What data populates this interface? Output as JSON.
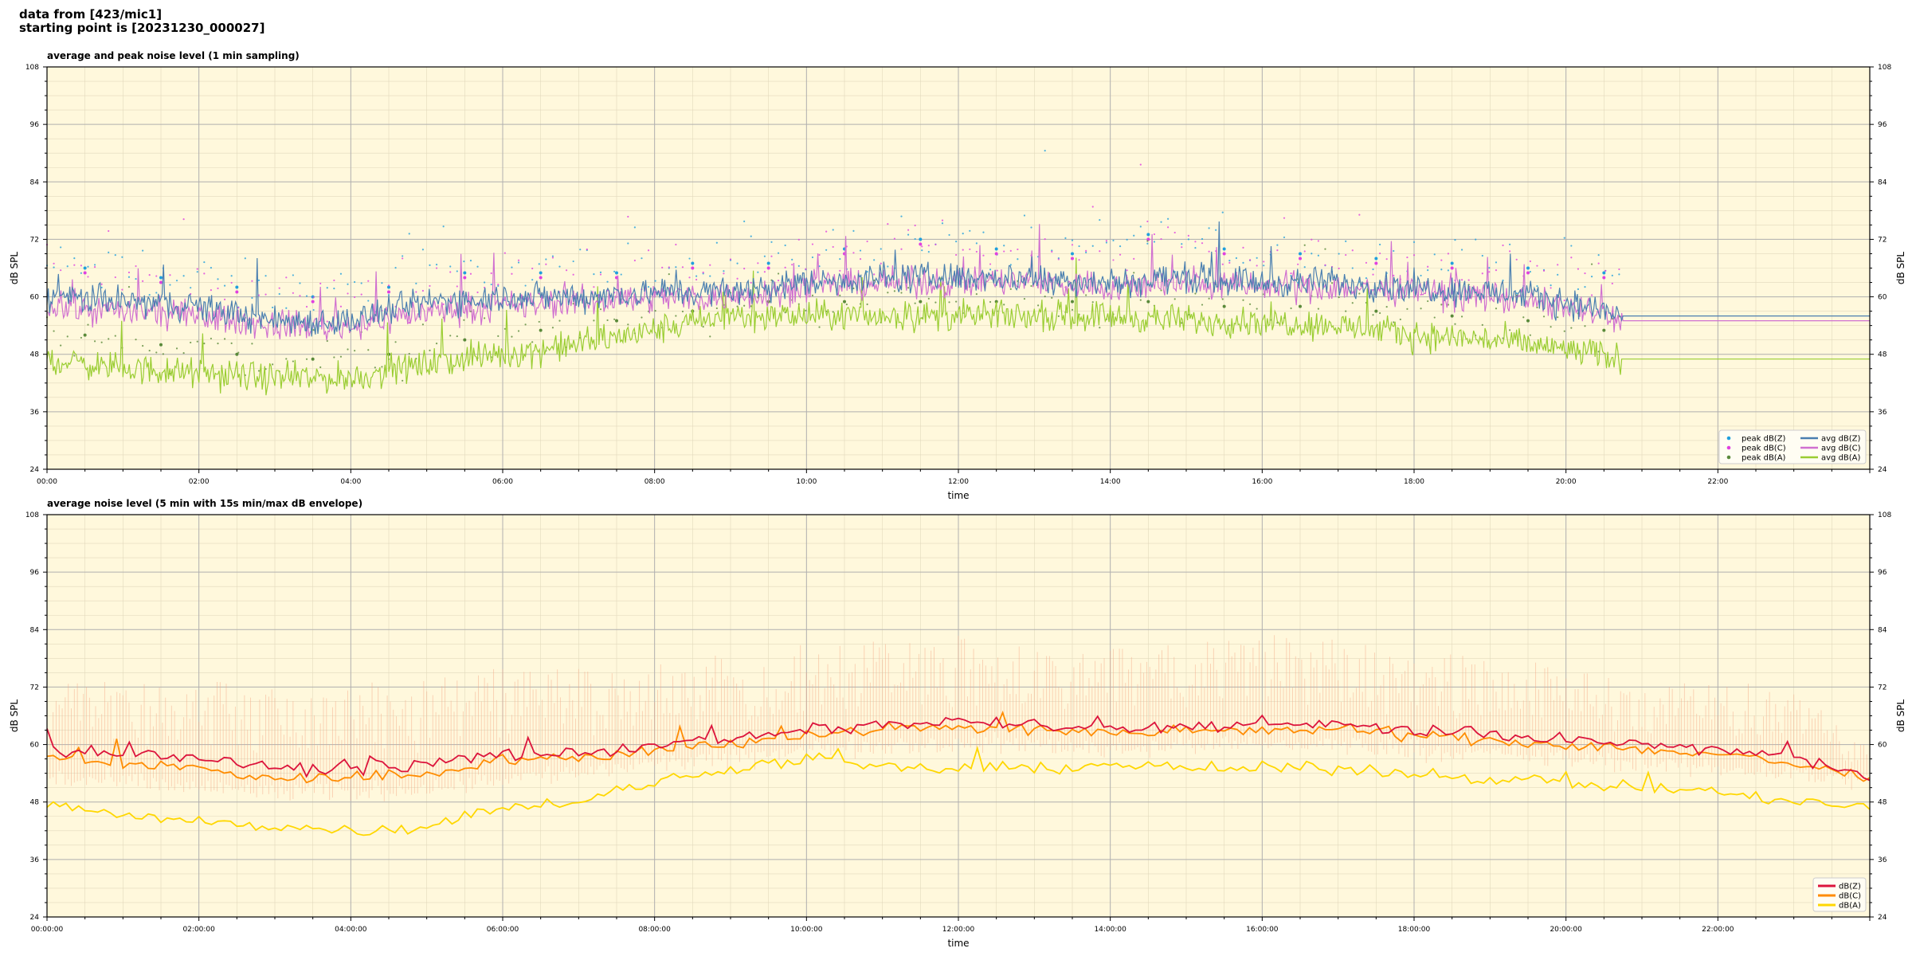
{
  "header": {
    "line1": "data from [423/mic1]",
    "line2": "starting point is [20231230_000027]"
  },
  "colors": {
    "plot_bg": "#fff8dc",
    "major_grid": "#b0b0b0",
    "minor_grid": "#e2d9bd",
    "peak_z": "#1f9fdd",
    "peak_c": "#e040e0",
    "peak_a": "#5a8a3a",
    "avg_z": "#4a7fb0",
    "avg_c": "#d070d0",
    "avg_a": "#9acd32",
    "env": "#f5a583",
    "db_z": "#dc143c",
    "db_c": "#ff8c00",
    "db_a": "#ffd700"
  },
  "chart_data": [
    {
      "type": "line",
      "title": "average and peak noise level (1 min sampling)",
      "xlabel": "time",
      "ylabel": "dB SPL",
      "xlim": [
        "00:00",
        "24:00"
      ],
      "ylim": [
        24,
        108
      ],
      "grid": true,
      "legend_position": "bottom-right",
      "x_tick_labels": [
        "00:00",
        "02:00",
        "04:00",
        "06:00",
        "08:00",
        "10:00",
        "12:00",
        "14:00",
        "16:00",
        "18:00",
        "20:00",
        "22:00"
      ],
      "y_tick_labels": [
        "24",
        "36",
        "48",
        "60",
        "72",
        "84",
        "96",
        "108"
      ],
      "legend": [
        "peak dB(Z)",
        "peak dB(C)",
        "peak dB(A)",
        "avg dB(Z)",
        "avg dB(C)",
        "avg dB(A)"
      ],
      "data_end_time": "20:45",
      "series": [
        {
          "name": "avg dB(Z)",
          "x": [
            "00:00",
            "01:00",
            "02:00",
            "03:00",
            "04:00",
            "05:00",
            "06:00",
            "07:00",
            "08:00",
            "09:00",
            "10:00",
            "11:00",
            "12:00",
            "13:00",
            "14:00",
            "15:00",
            "16:00",
            "17:00",
            "18:00",
            "19:00",
            "20:00",
            "20:45",
            "24:00"
          ],
          "values": [
            60,
            59,
            58,
            55,
            55,
            59,
            60,
            60,
            61,
            61,
            63,
            64,
            64,
            64,
            63,
            64,
            63,
            63,
            62,
            61,
            59,
            56,
            56
          ]
        },
        {
          "name": "avg dB(C)",
          "x": [
            "00:00",
            "01:00",
            "02:00",
            "03:00",
            "04:00",
            "05:00",
            "06:00",
            "07:00",
            "08:00",
            "09:00",
            "10:00",
            "11:00",
            "12:00",
            "13:00",
            "14:00",
            "15:00",
            "16:00",
            "17:00",
            "18:00",
            "19:00",
            "20:00",
            "20:45",
            "24:00"
          ],
          "values": [
            58,
            57,
            56,
            54,
            54,
            57,
            58,
            59,
            60,
            60,
            62,
            63,
            63,
            63,
            62,
            63,
            62,
            62,
            61,
            60,
            58,
            55,
            55
          ]
        },
        {
          "name": "avg dB(A)",
          "x": [
            "00:00",
            "01:00",
            "02:00",
            "03:00",
            "04:00",
            "05:00",
            "06:00",
            "07:00",
            "08:00",
            "09:00",
            "10:00",
            "11:00",
            "12:00",
            "13:00",
            "14:00",
            "15:00",
            "16:00",
            "17:00",
            "18:00",
            "19:00",
            "20:00",
            "20:45",
            "24:00"
          ],
          "values": [
            47,
            45,
            44,
            43,
            43,
            46,
            48,
            50,
            53,
            56,
            56,
            56,
            56,
            56,
            56,
            55,
            55,
            54,
            52,
            51,
            49,
            47,
            47
          ]
        }
      ],
      "peaks": [
        {
          "name": "peak dB(Z)",
          "x": [
            "00:30",
            "01:30",
            "02:30",
            "03:30",
            "04:30",
            "05:30",
            "06:30",
            "07:30",
            "08:30",
            "09:30",
            "10:30",
            "11:30",
            "12:30",
            "13:30",
            "14:30",
            "15:30",
            "16:30",
            "17:30",
            "18:30",
            "19:30",
            "20:30"
          ],
          "values": [
            66,
            64,
            62,
            60,
            62,
            65,
            65,
            65,
            67,
            67,
            70,
            72,
            70,
            69,
            73,
            70,
            69,
            68,
            67,
            66,
            65
          ]
        },
        {
          "name": "peak dB(C)",
          "x": [
            "00:30",
            "01:30",
            "02:30",
            "03:30",
            "04:30",
            "05:30",
            "06:30",
            "07:30",
            "08:30",
            "09:30",
            "10:30",
            "11:30",
            "12:30",
            "13:30",
            "14:30",
            "15:30",
            "16:30",
            "17:30",
            "18:30",
            "19:30",
            "20:30"
          ],
          "values": [
            65,
            63,
            61,
            59,
            61,
            64,
            64,
            64,
            66,
            66,
            69,
            71,
            69,
            68,
            72,
            69,
            68,
            67,
            66,
            65,
            64
          ]
        },
        {
          "name": "peak dB(A)",
          "x": [
            "00:30",
            "01:30",
            "02:30",
            "03:30",
            "04:30",
            "05:30",
            "06:30",
            "07:30",
            "08:30",
            "09:30",
            "10:30",
            "11:30",
            "12:30",
            "13:30",
            "14:30",
            "15:30",
            "16:30",
            "17:30",
            "18:30",
            "19:30",
            "20:30"
          ],
          "values": [
            52,
            50,
            48,
            47,
            48,
            51,
            53,
            55,
            57,
            59,
            59,
            59,
            59,
            59,
            59,
            58,
            58,
            57,
            56,
            55,
            53
          ]
        }
      ]
    },
    {
      "type": "line",
      "title": "average noise level (5 min with 15s min/max dB envelope)",
      "xlabel": "time",
      "ylabel": "dB SPL",
      "xlim": [
        "00:00:00",
        "24:00:00"
      ],
      "ylim": [
        24,
        108
      ],
      "grid": true,
      "legend_position": "bottom-right",
      "x_tick_labels": [
        "00:00:00",
        "02:00:00",
        "04:00:00",
        "06:00:00",
        "08:00:00",
        "10:00:00",
        "12:00:00",
        "14:00:00",
        "16:00:00",
        "18:00:00",
        "20:00:00",
        "22:00:00"
      ],
      "y_tick_labels": [
        "24",
        "36",
        "48",
        "60",
        "72",
        "84",
        "96",
        "108"
      ],
      "legend": [
        "dB(Z)",
        "dB(C)",
        "dB(A)"
      ],
      "series": [
        {
          "name": "dB(Z)",
          "x": [
            "00:00",
            "01:00",
            "02:00",
            "03:00",
            "04:00",
            "05:00",
            "06:00",
            "07:00",
            "08:00",
            "09:00",
            "10:00",
            "11:00",
            "12:00",
            "13:00",
            "14:00",
            "15:00",
            "16:00",
            "17:00",
            "18:00",
            "19:00",
            "20:00",
            "21:00",
            "22:00",
            "23:00",
            "24:00"
          ],
          "values": [
            59,
            58,
            57,
            55,
            55,
            56,
            58,
            58,
            60,
            61,
            63,
            64,
            65,
            64,
            63,
            64,
            64,
            64,
            63,
            62,
            61,
            60,
            59,
            57,
            54
          ]
        },
        {
          "name": "dB(C)",
          "x": [
            "00:00",
            "01:00",
            "02:00",
            "03:00",
            "04:00",
            "05:00",
            "06:00",
            "07:00",
            "08:00",
            "09:00",
            "10:00",
            "11:00",
            "12:00",
            "13:00",
            "14:00",
            "15:00",
            "16:00",
            "17:00",
            "18:00",
            "19:00",
            "20:00",
            "21:00",
            "22:00",
            "23:00",
            "24:00"
          ],
          "values": [
            57,
            56,
            55,
            53,
            53,
            54,
            57,
            57,
            59,
            60,
            62,
            63,
            64,
            63,
            62,
            63,
            63,
            63,
            62,
            61,
            60,
            59,
            58,
            56,
            53
          ]
        },
        {
          "name": "dB(A)",
          "x": [
            "00:00",
            "01:00",
            "02:00",
            "03:00",
            "04:00",
            "05:00",
            "06:00",
            "07:00",
            "08:00",
            "09:00",
            "10:00",
            "11:00",
            "12:00",
            "13:00",
            "14:00",
            "15:00",
            "16:00",
            "17:00",
            "18:00",
            "19:00",
            "20:00",
            "21:00",
            "22:00",
            "23:00",
            "24:00"
          ],
          "values": [
            48,
            45,
            44,
            43,
            42,
            43,
            47,
            48,
            52,
            55,
            57,
            55,
            55,
            55,
            56,
            55,
            55,
            55,
            54,
            53,
            52,
            51,
            50,
            48,
            47
          ]
        }
      ],
      "envelope": {
        "x": [
          "00:00",
          "01:00",
          "02:00",
          "03:00",
          "04:00",
          "05:00",
          "06:00",
          "07:00",
          "08:00",
          "09:00",
          "10:00",
          "11:00",
          "12:00",
          "13:00",
          "14:00",
          "15:00",
          "16:00",
          "17:00",
          "18:00",
          "19:00",
          "20:00",
          "21:00",
          "22:00",
          "23:00",
          "24:00"
        ],
        "min": [
          53,
          52,
          51,
          50,
          50,
          51,
          53,
          54,
          56,
          57,
          59,
          60,
          60,
          60,
          59,
          60,
          60,
          60,
          59,
          58,
          57,
          56,
          55,
          54,
          52
        ],
        "max": [
          76,
          75,
          74,
          72,
          73,
          74,
          76,
          76,
          78,
          79,
          81,
          82,
          84,
          80,
          80,
          81,
          85,
          82,
          80,
          78,
          77,
          75,
          74,
          72,
          60
        ]
      }
    }
  ]
}
